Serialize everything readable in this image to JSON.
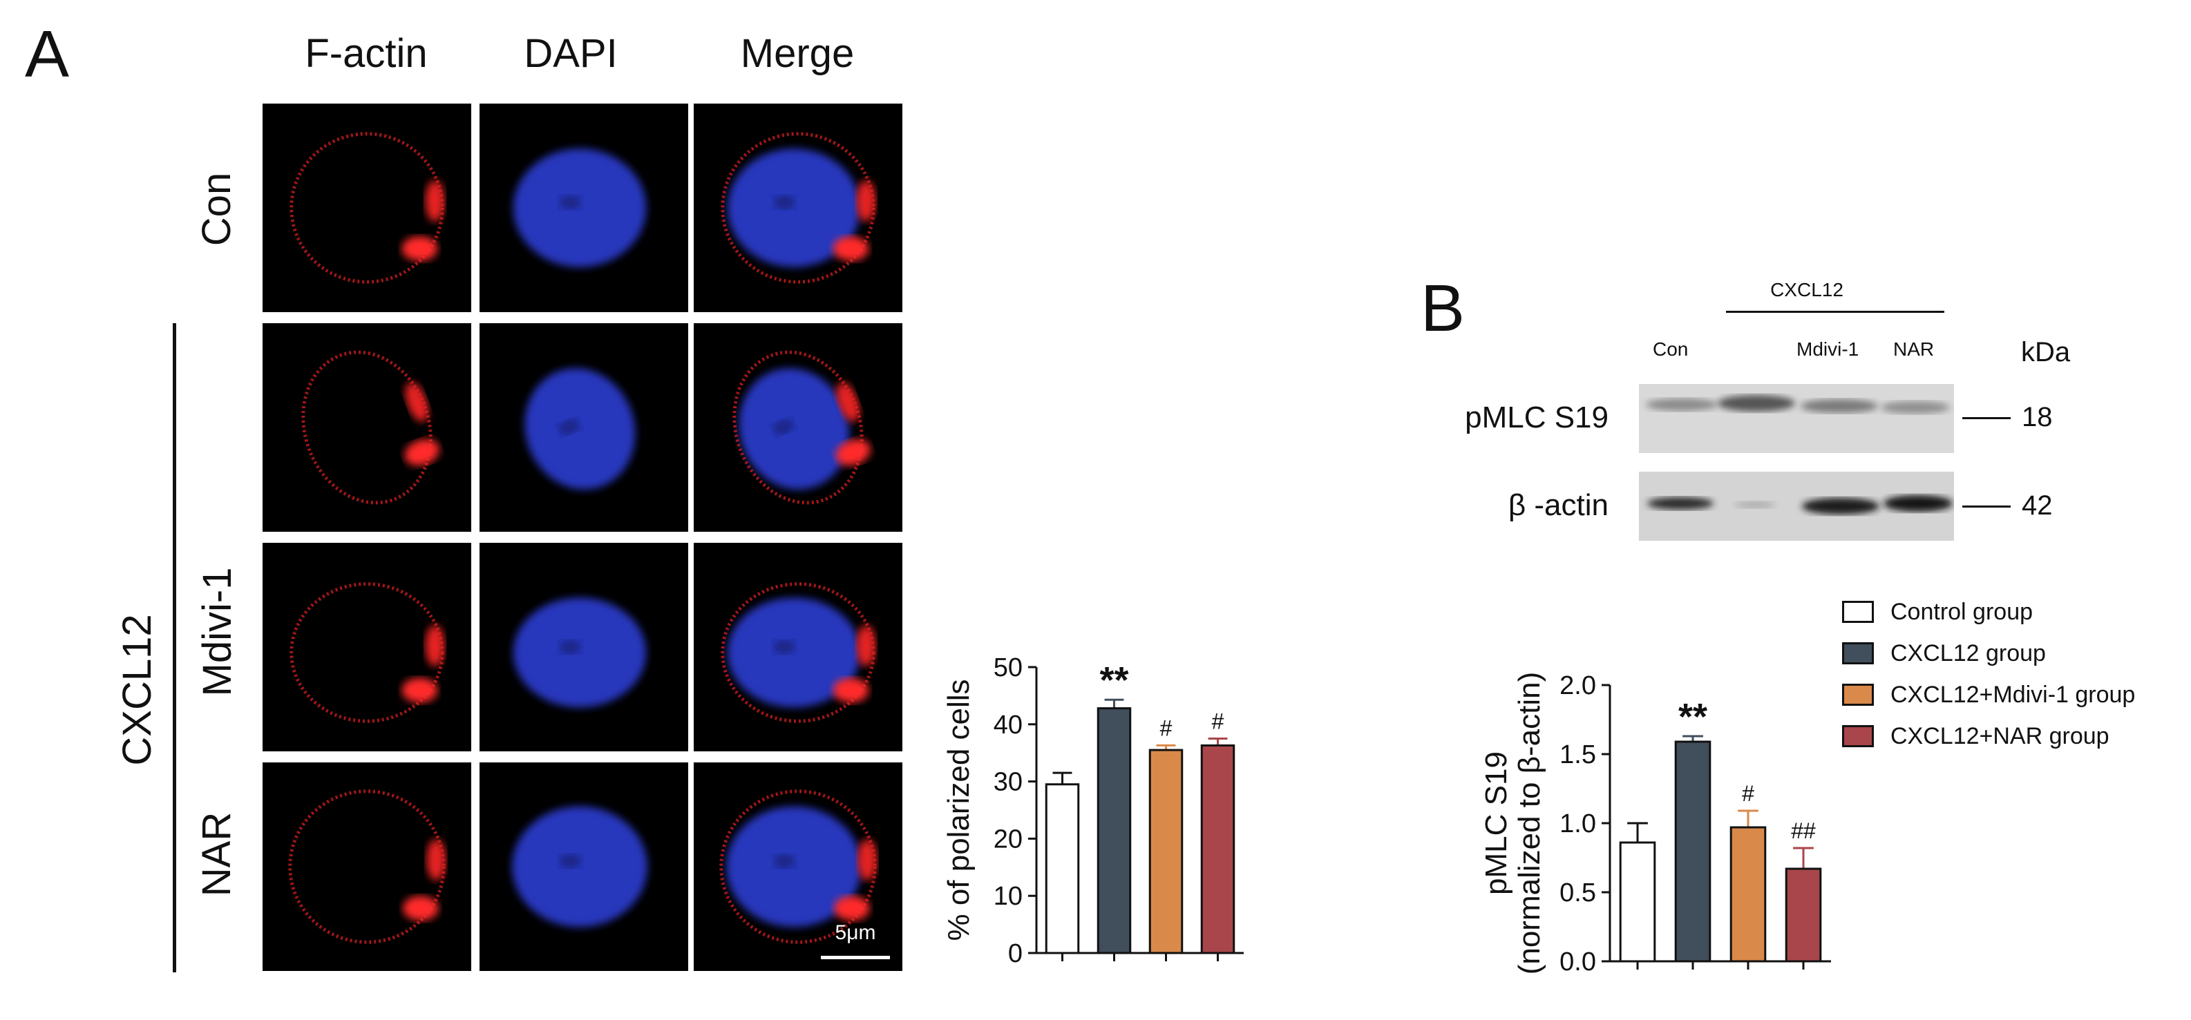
{
  "panel_a": {
    "letter": "A",
    "columns": [
      "F-actin",
      "DAPI",
      "Merge"
    ],
    "rows": [
      "Con",
      "Mdivi-1",
      "NAR"
    ],
    "group_label": "CXCL12",
    "scale_bar": "5μm"
  },
  "panel_b": {
    "letter": "B",
    "header": "CXCL12",
    "lanes": [
      "Con",
      "",
      "Mdivi-1",
      "NAR"
    ],
    "kda_label": "kDa",
    "bands": [
      {
        "label": "pMLC S19",
        "kda": "18"
      },
      {
        "label": "β -actin",
        "kda": "42"
      }
    ]
  },
  "legend": {
    "items": [
      {
        "label": "Control group",
        "color": "#ffffff"
      },
      {
        "label": "CXCL12 group",
        "color": "#414e5b"
      },
      {
        "label": "CXCL12+Mdivi-1 group",
        "color": "#d9894a"
      },
      {
        "label": "CXCL12+NAR group",
        "color": "#a8464b"
      }
    ]
  },
  "chart_data": [
    {
      "type": "bar",
      "ylabel": "% of polarized cells",
      "ylim": [
        0,
        50
      ],
      "yticks": [
        "0",
        "10",
        "20",
        "30",
        "40",
        "50"
      ],
      "values": [
        29.5,
        42.8,
        35.5,
        36.3
      ],
      "errors": [
        2.0,
        1.5,
        0.8,
        1.2
      ],
      "annotations": [
        "",
        "**",
        "#",
        "#"
      ],
      "colors": [
        "#ffffff",
        "#414e5b",
        "#d9894a",
        "#a8464b"
      ]
    },
    {
      "type": "bar",
      "ylabel": "pMLC S19",
      "ylabel2": "(normalized to β-actin)",
      "ylim": [
        0,
        2.0
      ],
      "yticks": [
        "0.0",
        "0.5",
        "1.0",
        "1.5",
        "2.0"
      ],
      "values": [
        0.86,
        1.59,
        0.97,
        0.67
      ],
      "errors": [
        0.14,
        0.04,
        0.12,
        0.15
      ],
      "annotations": [
        "",
        "**",
        "#",
        "##"
      ],
      "colors": [
        "#ffffff",
        "#414e5b",
        "#d9894a",
        "#a8464b"
      ]
    }
  ]
}
